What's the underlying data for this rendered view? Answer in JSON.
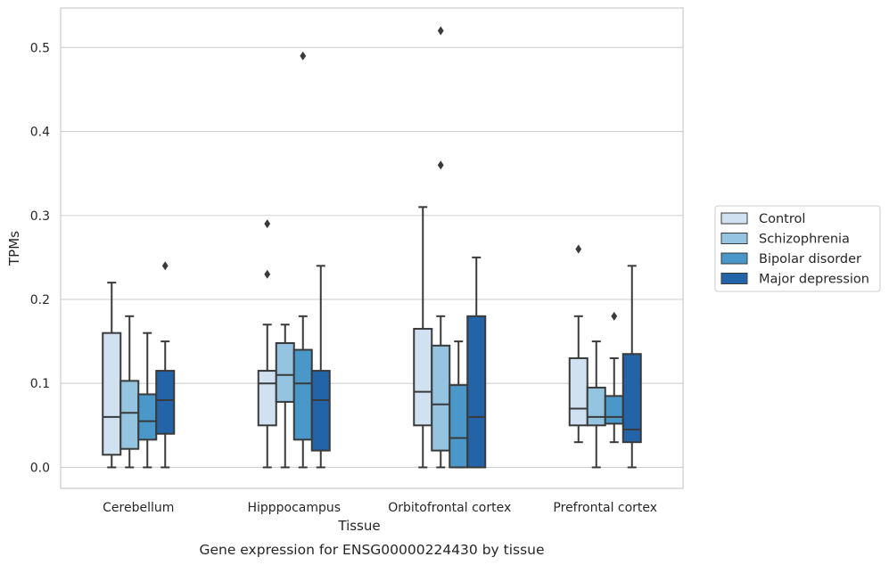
{
  "chart_data": {
    "type": "box",
    "xlabel": "Tissue",
    "ylabel": "TPMs",
    "caption": "Gene expression for ENSG00000224430 by tissue",
    "ylim": [
      -0.025,
      0.547
    ],
    "yticks": [
      "0.0",
      "0.1",
      "0.2",
      "0.3",
      "0.4",
      "0.5"
    ],
    "ytick_values": [
      0.0,
      0.1,
      0.2,
      0.3,
      0.4,
      0.5
    ],
    "grid": true,
    "legend_position": "right",
    "categories": [
      "Cerebellum",
      "Hipppocampus",
      "Orbitofrontal cortex",
      "Prefrontal cortex"
    ],
    "series": [
      {
        "name": "Control",
        "color": "#d0e1f2",
        "boxes": [
          {
            "whisker_low": 0.0,
            "q1": 0.015,
            "median": 0.06,
            "q3": 0.16,
            "whisker_high": 0.22,
            "outliers": []
          },
          {
            "whisker_low": 0.0,
            "q1": 0.05,
            "median": 0.1,
            "q3": 0.115,
            "whisker_high": 0.17,
            "outliers": [
              0.29,
              0.23
            ]
          },
          {
            "whisker_low": 0.0,
            "q1": 0.05,
            "median": 0.09,
            "q3": 0.165,
            "whisker_high": 0.31,
            "outliers": []
          },
          {
            "whisker_low": 0.03,
            "q1": 0.05,
            "median": 0.07,
            "q3": 0.13,
            "whisker_high": 0.18,
            "outliers": [
              0.26
            ]
          }
        ]
      },
      {
        "name": "Schizophrenia",
        "color": "#94c4df",
        "boxes": [
          {
            "whisker_low": 0.0,
            "q1": 0.022,
            "median": 0.065,
            "q3": 0.103,
            "whisker_high": 0.18,
            "outliers": []
          },
          {
            "whisker_low": 0.0,
            "q1": 0.078,
            "median": 0.11,
            "q3": 0.148,
            "whisker_high": 0.17,
            "outliers": []
          },
          {
            "whisker_low": 0.0,
            "q1": 0.02,
            "median": 0.075,
            "q3": 0.145,
            "whisker_high": 0.18,
            "outliers": [
              0.52,
              0.36
            ]
          },
          {
            "whisker_low": 0.0,
            "q1": 0.05,
            "median": 0.06,
            "q3": 0.095,
            "whisker_high": 0.15,
            "outliers": []
          }
        ]
      },
      {
        "name": "Bipolar disorder",
        "color": "#4a98c9",
        "boxes": [
          {
            "whisker_low": 0.0,
            "q1": 0.033,
            "median": 0.055,
            "q3": 0.087,
            "whisker_high": 0.16,
            "outliers": []
          },
          {
            "whisker_low": 0.0,
            "q1": 0.033,
            "median": 0.1,
            "q3": 0.14,
            "whisker_high": 0.18,
            "outliers": [
              0.49
            ]
          },
          {
            "whisker_low": 0.0,
            "q1": 0.0,
            "median": 0.035,
            "q3": 0.098,
            "whisker_high": 0.15,
            "outliers": []
          },
          {
            "whisker_low": 0.03,
            "q1": 0.052,
            "median": 0.06,
            "q3": 0.085,
            "whisker_high": 0.13,
            "outliers": [
              0.18
            ]
          }
        ]
      },
      {
        "name": "Major depression",
        "color": "#2363a8",
        "boxes": [
          {
            "whisker_low": 0.0,
            "q1": 0.04,
            "median": 0.08,
            "q3": 0.115,
            "whisker_high": 0.15,
            "outliers": [
              0.24
            ]
          },
          {
            "whisker_low": 0.0,
            "q1": 0.02,
            "median": 0.08,
            "q3": 0.115,
            "whisker_high": 0.24,
            "outliers": []
          },
          {
            "whisker_low": 0.0,
            "q1": 0.0,
            "median": 0.06,
            "q3": 0.18,
            "whisker_high": 0.25,
            "outliers": []
          },
          {
            "whisker_low": 0.0,
            "q1": 0.03,
            "median": 0.045,
            "q3": 0.135,
            "whisker_high": 0.24,
            "outliers": []
          }
        ]
      }
    ]
  }
}
